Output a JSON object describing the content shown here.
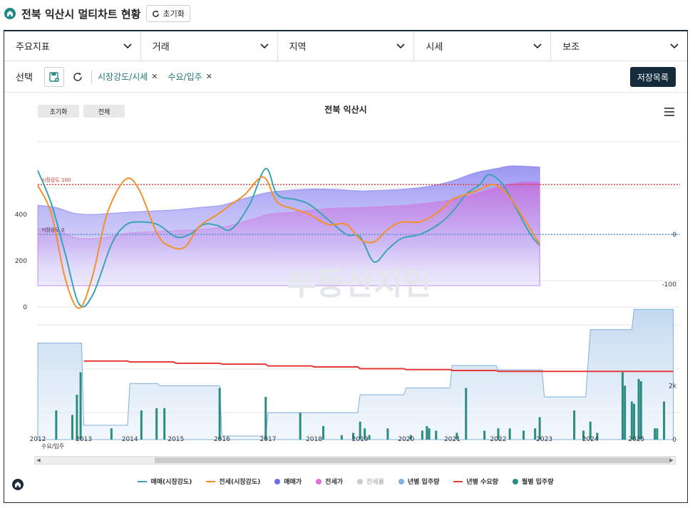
{
  "header": {
    "title": "전북 익산시 멀티차트 현황",
    "reset_label": "초기화"
  },
  "dropdowns": [
    "주요지표",
    "거래",
    "지역",
    "시세",
    "보조"
  ],
  "selection": {
    "label": "선택",
    "chips": [
      "시장강도/시세",
      "수요/입주"
    ],
    "save_list_label": "저장목록"
  },
  "chart_controls": {
    "reset_label": "초기화",
    "all_label": "전체"
  },
  "watermark": "부동산지인",
  "chart_data": {
    "type": "line",
    "title": "전북 익산시",
    "x_ticks": [
      "2012",
      "2013",
      "2014",
      "2015",
      "2016",
      "2017",
      "2018",
      "2019",
      "2020",
      "2021",
      "2022",
      "2023",
      "2024",
      "2025"
    ],
    "top_panel": {
      "left_ticks": [
        "0",
        "200",
        "400"
      ],
      "right_ticks": [
        "-100",
        "0"
      ],
      "reference_lines": [
        {
          "label": "시장강도 100",
          "value": 100,
          "color": "#e53935"
        },
        {
          "label": "시장강도 0",
          "value": 0,
          "color": "#5b8fd9"
        }
      ],
      "series": [
        {
          "name": "매매(시장강도)",
          "color": "#3aa3b5",
          "points": [
            [
              2012.0,
              128
            ],
            [
              2012.3,
              60
            ],
            [
              2012.6,
              -40
            ],
            [
              2012.9,
              -140
            ],
            [
              2013.2,
              -120
            ],
            [
              2013.6,
              -20
            ],
            [
              2013.9,
              18
            ],
            [
              2014.2,
              25
            ],
            [
              2014.6,
              20
            ],
            [
              2015.0,
              -5
            ],
            [
              2015.3,
              0
            ],
            [
              2015.6,
              20
            ],
            [
              2015.9,
              18
            ],
            [
              2016.2,
              10
            ],
            [
              2016.6,
              60
            ],
            [
              2016.95,
              132
            ],
            [
              2017.2,
              80
            ],
            [
              2017.6,
              70
            ],
            [
              2017.9,
              60
            ],
            [
              2018.3,
              30
            ],
            [
              2018.7,
              0
            ],
            [
              2019.0,
              -5
            ],
            [
              2019.3,
              -55
            ],
            [
              2019.6,
              -30
            ],
            [
              2019.9,
              -8
            ],
            [
              2020.3,
              0
            ],
            [
              2020.7,
              20
            ],
            [
              2021.0,
              45
            ],
            [
              2021.3,
              80
            ],
            [
              2021.6,
              100
            ],
            [
              2021.8,
              120
            ],
            [
              2022.1,
              100
            ],
            [
              2022.4,
              50
            ],
            [
              2022.7,
              0
            ],
            [
              2022.9,
              -22
            ]
          ]
        },
        {
          "name": "전세(시장강도)",
          "color": "#f4902c",
          "points": [
            [
              2012.0,
              98
            ],
            [
              2012.3,
              40
            ],
            [
              2012.6,
              -90
            ],
            [
              2012.9,
              -148
            ],
            [
              2013.2,
              -80
            ],
            [
              2013.5,
              40
            ],
            [
              2013.9,
              110
            ],
            [
              2014.2,
              90
            ],
            [
              2014.6,
              0
            ],
            [
              2014.9,
              -25
            ],
            [
              2015.2,
              -25
            ],
            [
              2015.5,
              15
            ],
            [
              2015.9,
              40
            ],
            [
              2016.2,
              60
            ],
            [
              2016.5,
              80
            ],
            [
              2016.9,
              115
            ],
            [
              2017.2,
              65
            ],
            [
              2017.6,
              50
            ],
            [
              2017.9,
              40
            ],
            [
              2018.3,
              20
            ],
            [
              2018.7,
              20
            ],
            [
              2019.0,
              -10
            ],
            [
              2019.3,
              -15
            ],
            [
              2019.6,
              10
            ],
            [
              2019.9,
              25
            ],
            [
              2020.3,
              25
            ],
            [
              2020.7,
              45
            ],
            [
              2021.0,
              70
            ],
            [
              2021.3,
              80
            ],
            [
              2021.6,
              90
            ],
            [
              2021.9,
              100
            ],
            [
              2022.2,
              80
            ],
            [
              2022.5,
              40
            ],
            [
              2022.9,
              -20
            ]
          ]
        },
        {
          "name": "매매가",
          "color": "#6c6cf0",
          "area": true,
          "points": [
            [
              2012.0,
              440
            ],
            [
              2012.4,
              430
            ],
            [
              2012.8,
              405
            ],
            [
              2013.2,
              400
            ],
            [
              2013.6,
              405
            ],
            [
              2014.0,
              410
            ],
            [
              2014.5,
              415
            ],
            [
              2015.0,
              420
            ],
            [
              2015.5,
              430
            ],
            [
              2016.0,
              440
            ],
            [
              2016.5,
              470
            ],
            [
              2017.0,
              495
            ],
            [
              2017.5,
              505
            ],
            [
              2018.0,
              510
            ],
            [
              2018.5,
              508
            ],
            [
              2019.0,
              502
            ],
            [
              2019.5,
              505
            ],
            [
              2020.0,
              510
            ],
            [
              2020.5,
              522
            ],
            [
              2021.0,
              545
            ],
            [
              2021.5,
              580
            ],
            [
              2022.0,
              600
            ],
            [
              2022.3,
              610
            ],
            [
              2022.9,
              605
            ]
          ]
        },
        {
          "name": "전세가",
          "color": "#d878e0",
          "area": true,
          "points": [
            [
              2012.0,
              340
            ],
            [
              2012.4,
              335
            ],
            [
              2012.8,
              300
            ],
            [
              2013.2,
              295
            ],
            [
              2013.6,
              305
            ],
            [
              2014.0,
              320
            ],
            [
              2014.5,
              325
            ],
            [
              2015.0,
              330
            ],
            [
              2015.5,
              335
            ],
            [
              2016.0,
              345
            ],
            [
              2016.5,
              370
            ],
            [
              2017.0,
              400
            ],
            [
              2017.5,
              410
            ],
            [
              2018.0,
              420
            ],
            [
              2018.5,
              428
            ],
            [
              2019.0,
              430
            ],
            [
              2019.5,
              435
            ],
            [
              2020.0,
              440
            ],
            [
              2020.5,
              450
            ],
            [
              2021.0,
              465
            ],
            [
              2021.5,
              490
            ],
            [
              2022.0,
              520
            ],
            [
              2022.5,
              540
            ],
            [
              2022.9,
              540
            ]
          ]
        }
      ]
    },
    "bottom_panel": {
      "label": "수요/입주",
      "right_ticks": [
        "0",
        "2k"
      ],
      "series": [
        {
          "name": "년별 입주량",
          "color": "#8fb8e0",
          "type": "step-area",
          "points": [
            [
              2012.0,
              2150
            ],
            [
              2012.95,
              2150
            ],
            [
              2013.0,
              320
            ],
            [
              2013.95,
              320
            ],
            [
              2014.0,
              1250
            ],
            [
              2014.6,
              1250
            ],
            [
              2014.65,
              1200
            ],
            [
              2015.95,
              1200
            ],
            [
              2016.0,
              80
            ],
            [
              2016.95,
              80
            ],
            [
              2017.0,
              600
            ],
            [
              2017.95,
              600
            ],
            [
              2018.0,
              600
            ],
            [
              2018.95,
              600
            ],
            [
              2019.0,
              1000
            ],
            [
              2019.95,
              1000
            ],
            [
              2020.0,
              1150
            ],
            [
              2020.95,
              1150
            ],
            [
              2021.0,
              1650
            ],
            [
              2021.95,
              1650
            ],
            [
              2022.0,
              1550
            ],
            [
              2022.95,
              1550
            ],
            [
              2023.0,
              950
            ],
            [
              2023.9,
              950
            ],
            [
              2024.0,
              2450
            ],
            [
              2024.9,
              2450
            ],
            [
              2024.95,
              2900
            ],
            [
              2025.8,
              2900
            ]
          ]
        },
        {
          "name": "년별 수요량",
          "color": "#e53935",
          "type": "step-line",
          "points": [
            [
              2013.0,
              1750
            ],
            [
              2013.95,
              1750
            ],
            [
              2014.0,
              1730
            ],
            [
              2014.95,
              1730
            ],
            [
              2015.0,
              1700
            ],
            [
              2015.95,
              1700
            ],
            [
              2016.0,
              1680
            ],
            [
              2016.95,
              1680
            ],
            [
              2017.0,
              1640
            ],
            [
              2017.95,
              1640
            ],
            [
              2018.0,
              1620
            ],
            [
              2018.95,
              1620
            ],
            [
              2019.0,
              1580
            ],
            [
              2019.95,
              1580
            ],
            [
              2020.0,
              1560
            ],
            [
              2020.95,
              1560
            ],
            [
              2021.0,
              1540
            ],
            [
              2021.95,
              1540
            ],
            [
              2022.0,
              1520
            ],
            [
              2025.8,
              1520
            ]
          ]
        },
        {
          "name": "월별 입주량",
          "color": "#2a8c82",
          "type": "bar",
          "points": [
            [
              2012.4,
              650
            ],
            [
              2012.75,
              550
            ],
            [
              2012.85,
              1000
            ],
            [
              2012.93,
              1500
            ],
            [
              2013.6,
              250
            ],
            [
              2014.25,
              650
            ],
            [
              2014.58,
              700
            ],
            [
              2014.75,
              700
            ],
            [
              2015.95,
              1150
            ],
            [
              2016.95,
              950
            ],
            [
              2017.7,
              600
            ],
            [
              2018.2,
              300
            ],
            [
              2018.6,
              100
            ],
            [
              2018.85,
              150
            ],
            [
              2019.0,
              400
            ],
            [
              2019.1,
              250
            ],
            [
              2019.2,
              100
            ],
            [
              2019.6,
              250
            ],
            [
              2020.1,
              100
            ],
            [
              2020.35,
              200
            ],
            [
              2020.45,
              300
            ],
            [
              2020.5,
              250
            ],
            [
              2020.65,
              200
            ],
            [
              2021.1,
              150
            ],
            [
              2021.3,
              1150
            ],
            [
              2021.7,
              200
            ],
            [
              2022.0,
              250
            ],
            [
              2022.25,
              250
            ],
            [
              2022.55,
              200
            ],
            [
              2022.8,
              250
            ],
            [
              2022.9,
              500
            ],
            [
              2023.65,
              650
            ],
            [
              2023.85,
              200
            ],
            [
              2024.0,
              400
            ],
            [
              2024.15,
              150
            ],
            [
              2024.7,
              1500
            ],
            [
              2024.75,
              1200
            ],
            [
              2024.9,
              850
            ],
            [
              2024.95,
              800
            ],
            [
              2025.05,
              1350
            ],
            [
              2025.1,
              1300
            ],
            [
              2025.4,
              250
            ],
            [
              2025.45,
              250
            ],
            [
              2025.6,
              850
            ]
          ]
        }
      ]
    },
    "legend": [
      {
        "name": "매매(시장강도)",
        "kind": "line",
        "color": "#3aa3b5",
        "enabled": true
      },
      {
        "name": "전세(시장강도)",
        "kind": "line",
        "color": "#f4902c",
        "enabled": true
      },
      {
        "name": "매매가",
        "kind": "dot",
        "color": "#6c6cf0",
        "enabled": true
      },
      {
        "name": "전세가",
        "kind": "dot",
        "color": "#e26fd4",
        "enabled": true
      },
      {
        "name": "전세율",
        "kind": "dot",
        "color": "#bdbdbd",
        "enabled": false
      },
      {
        "name": "년별 입주량",
        "kind": "dot",
        "color": "#7fb0de",
        "enabled": true
      },
      {
        "name": "년별 수요량",
        "kind": "line",
        "color": "#e53935",
        "enabled": true
      },
      {
        "name": "월별 입주량",
        "kind": "dot",
        "color": "#2a8c82",
        "enabled": true
      }
    ]
  }
}
